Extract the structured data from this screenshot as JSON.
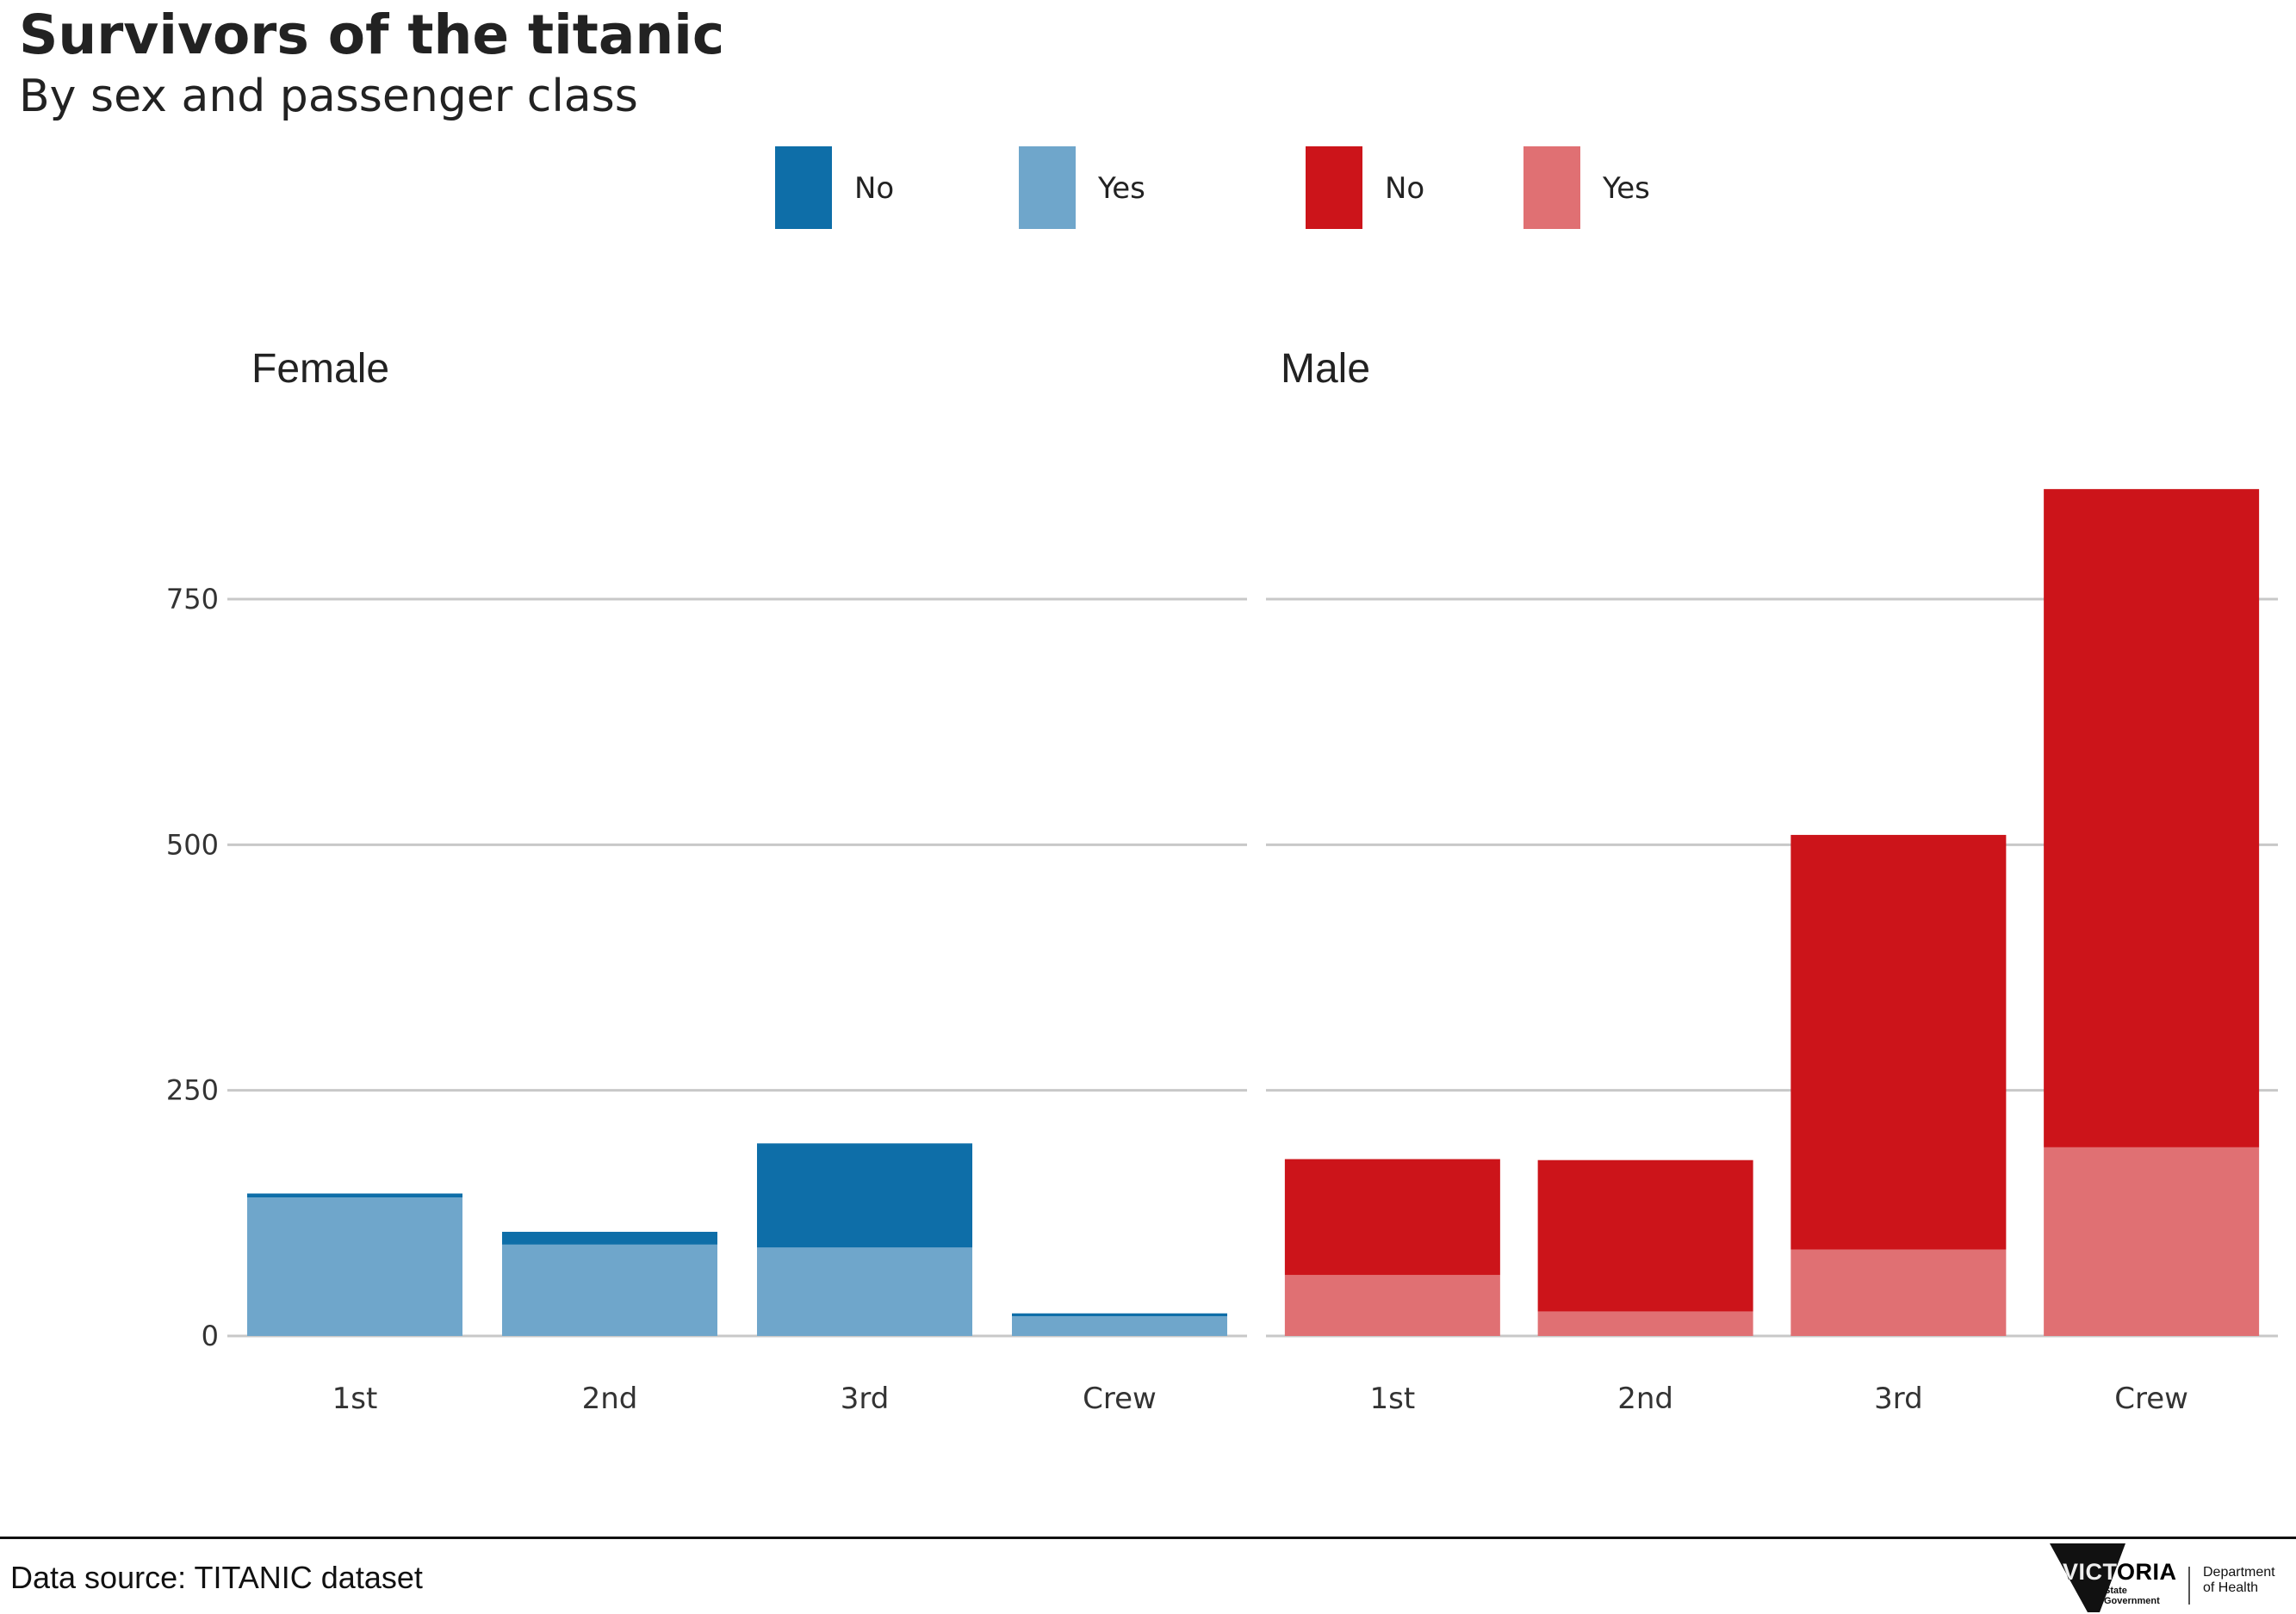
{
  "chart_data": {
    "type": "bar",
    "stacked": true,
    "title": "Survivors of the titanic",
    "subtitle": "By sex and passenger class",
    "categories": [
      "1st",
      "2nd",
      "3rd",
      "Crew"
    ],
    "y_ticks": [
      0,
      250,
      500,
      750
    ],
    "ylim": [
      0,
      900
    ],
    "grid": true,
    "legend_placement": "top",
    "legend": [
      {
        "label": "No",
        "color": "#0e6ea8"
      },
      {
        "label": "Yes",
        "color": "#6fa6cb"
      },
      {
        "label": "No",
        "color": "#cc141a"
      },
      {
        "label": "Yes",
        "color": "#e07073"
      }
    ],
    "facets": [
      {
        "label": "Female",
        "series": [
          {
            "name": "Yes",
            "color": "#6fa6cb",
            "values": [
              141,
              93,
              90,
              20
            ]
          },
          {
            "name": "No",
            "color": "#0e6ea8",
            "values": [
              4,
              13,
              106,
              3
            ]
          }
        ]
      },
      {
        "label": "Male",
        "series": [
          {
            "name": "Yes",
            "color": "#e07073",
            "values": [
              62,
              25,
              88,
              192
            ]
          },
          {
            "name": "No",
            "color": "#cc141a",
            "values": [
              118,
              154,
              422,
              670
            ]
          }
        ]
      }
    ]
  },
  "footer": {
    "source": "Data source: TITANIC dataset",
    "logo_name": "VICTORIA",
    "logo_sub": "State Government",
    "department": "Department of Health"
  }
}
